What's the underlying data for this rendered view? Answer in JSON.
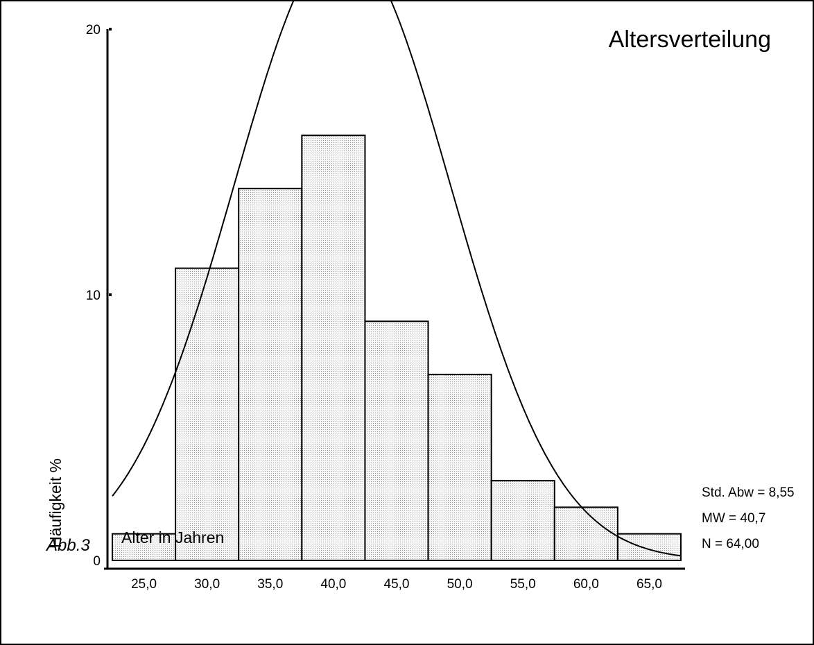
{
  "chart_data": {
    "type": "bar",
    "title": "Altersverteilung",
    "xlabel": "Alter in Jahren",
    "ylabel": "Häufigkeit %",
    "caption": "Abb.3",
    "categories": [
      "25,0",
      "30,0",
      "35,0",
      "40,0",
      "45,0",
      "50,0",
      "55,0",
      "60,0",
      "65,0"
    ],
    "bin_centers": [
      25,
      30,
      35,
      40,
      45,
      50,
      55,
      60,
      65
    ],
    "bin_width": 5,
    "values": [
      1,
      11,
      14,
      16,
      9,
      7,
      3,
      2,
      1
    ],
    "xlim": [
      22.5,
      67.5
    ],
    "ylim": [
      0,
      20
    ],
    "yticks": [
      0,
      10,
      20
    ],
    "ytick_labels": [
      "0",
      "10",
      "20"
    ],
    "normal_curve": {
      "mean": 40.7,
      "sd": 8.55,
      "n": 64
    },
    "stats": [
      "Std. Abw = 8,55",
      "MW = 40,7",
      "N = 64,00"
    ],
    "grid": false,
    "colors": {
      "bar_fill": "#ebebeb",
      "bar_stroke": "#000000",
      "curve": "#000000"
    }
  }
}
